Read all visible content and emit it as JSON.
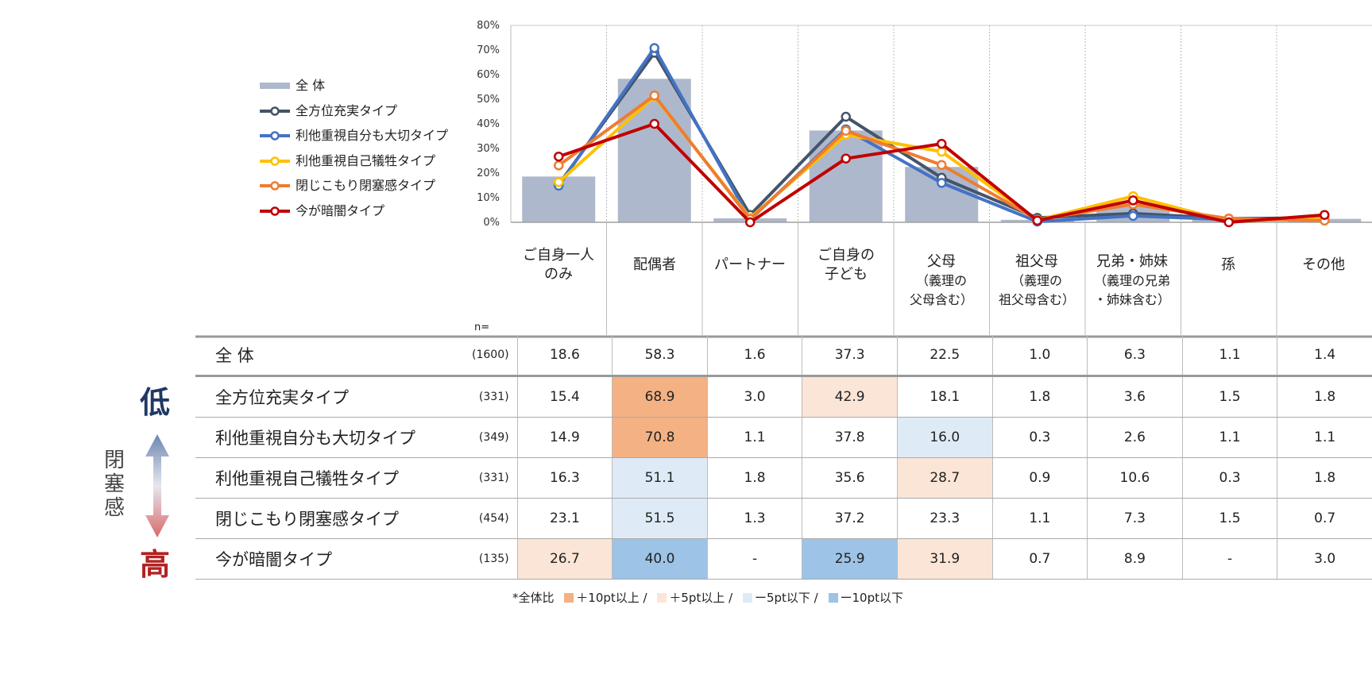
{
  "chart_data": {
    "type": "bar+line",
    "categories": [
      {
        "main": "ご自身一人",
        "main2": "のみ",
        "sub1": "",
        "sub2": ""
      },
      {
        "main": "配偶者",
        "main2": "",
        "sub1": "",
        "sub2": ""
      },
      {
        "main": "パートナー",
        "main2": "",
        "sub1": "",
        "sub2": ""
      },
      {
        "main": "ご自身の",
        "main2": "子ども",
        "sub1": "",
        "sub2": ""
      },
      {
        "main": "父母",
        "main2": "",
        "sub1": "（義理の",
        "sub2": "父母含む）"
      },
      {
        "main": "祖父母",
        "main2": "",
        "sub1": "（義理の",
        "sub2": "祖父母含む）"
      },
      {
        "main": "兄弟・姉妹",
        "main2": "",
        "sub1": "（義理の兄弟",
        "sub2": "・姉妹含む）"
      },
      {
        "main": "孫",
        "main2": "",
        "sub1": "",
        "sub2": ""
      },
      {
        "main": "その他",
        "main2": "",
        "sub1": "",
        "sub2": ""
      }
    ],
    "y_ticks": [
      "0%",
      "10%",
      "20%",
      "30%",
      "40%",
      "50%",
      "60%",
      "70%",
      "80%"
    ],
    "ylim": [
      0,
      80
    ],
    "bars": {
      "name": "全 体",
      "color": "#aeb8cc",
      "values": [
        18.6,
        58.3,
        1.6,
        37.3,
        22.5,
        1.0,
        6.3,
        1.1,
        1.4
      ]
    },
    "series": [
      {
        "name": "全方位充実タイプ",
        "color": "#44546a",
        "values": [
          15.4,
          68.9,
          3.0,
          42.9,
          18.1,
          1.8,
          3.6,
          1.5,
          1.8
        ]
      },
      {
        "name": "利他重視自分も大切タイプ",
        "color": "#4472c4",
        "values": [
          14.9,
          70.8,
          1.1,
          37.8,
          16.0,
          0.3,
          2.6,
          1.1,
          1.1
        ]
      },
      {
        "name": "利他重視自己犠牲タイプ",
        "color": "#ffc000",
        "values": [
          16.3,
          51.1,
          1.8,
          35.6,
          28.7,
          0.9,
          10.6,
          0.3,
          1.8
        ]
      },
      {
        "name": "閉じこもり閉塞感タイプ",
        "color": "#ed7d31",
        "values": [
          23.1,
          51.5,
          1.3,
          37.2,
          23.3,
          1.1,
          7.3,
          1.5,
          0.7
        ]
      },
      {
        "name": "今が暗闇タイプ",
        "color": "#c00000",
        "values": [
          26.7,
          40.0,
          null,
          25.9,
          31.9,
          0.7,
          8.9,
          null,
          3.0
        ]
      }
    ],
    "n_label": "n=",
    "table": [
      {
        "label": "全 体",
        "n": "(1600)",
        "cells": [
          "18.6",
          "58.3",
          "1.6",
          "37.3",
          "22.5",
          "1.0",
          "6.3",
          "1.1",
          "1.4"
        ],
        "hl": [
          0,
          0,
          0,
          0,
          0,
          0,
          0,
          0,
          0
        ]
      },
      {
        "label": "全方位充実タイプ",
        "n": "(331)",
        "cells": [
          "15.4",
          "68.9",
          "3.0",
          "42.9",
          "18.1",
          "1.8",
          "3.6",
          "1.5",
          "1.8"
        ],
        "hl": [
          0,
          2,
          0,
          1,
          0,
          0,
          0,
          0,
          0
        ]
      },
      {
        "label": "利他重視自分も大切タイプ",
        "n": "(349)",
        "cells": [
          "14.9",
          "70.8",
          "1.1",
          "37.8",
          "16.0",
          "0.3",
          "2.6",
          "1.1",
          "1.1"
        ],
        "hl": [
          0,
          2,
          0,
          0,
          -1,
          0,
          0,
          0,
          0
        ]
      },
      {
        "label": "利他重視自己犠牲タイプ",
        "n": "(331)",
        "cells": [
          "16.3",
          "51.1",
          "1.8",
          "35.6",
          "28.7",
          "0.9",
          "10.6",
          "0.3",
          "1.8"
        ],
        "hl": [
          0,
          -1,
          0,
          0,
          1,
          0,
          0,
          0,
          0
        ]
      },
      {
        "label": "閉じこもり閉塞感タイプ",
        "n": "(454)",
        "cells": [
          "23.1",
          "51.5",
          "1.3",
          "37.2",
          "23.3",
          "1.1",
          "7.3",
          "1.5",
          "0.7"
        ],
        "hl": [
          0,
          -1,
          0,
          0,
          0,
          0,
          0,
          0,
          0
        ]
      },
      {
        "label": "今が暗闇タイプ",
        "n": "(135)",
        "cells": [
          "26.7",
          "40.0",
          "-",
          "25.9",
          "31.9",
          "0.7",
          "8.9",
          "-",
          "3.0"
        ],
        "hl": [
          1,
          -2,
          0,
          -2,
          1,
          0,
          0,
          0,
          0
        ]
      }
    ],
    "highlight_colors": {
      "p10": "#f4b183",
      "p5": "#fbe5d6",
      "m5": "#deebf7",
      "m10": "#9dc3e6"
    },
    "footnote": {
      "prefix": "*全体比",
      "p10": "＋10pt以上 /",
      "p5": "＋5pt以上 /",
      "m5": "ー5pt以下 /",
      "m10": "ー10pt以下"
    },
    "side_axis": {
      "low": "低",
      "label": "閉塞感",
      "high": "高"
    }
  }
}
